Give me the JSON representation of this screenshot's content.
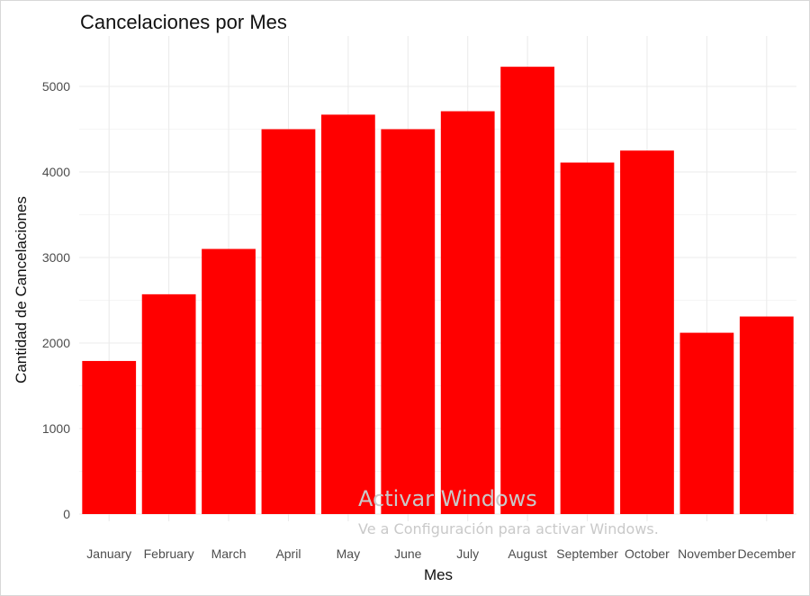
{
  "chart_data": {
    "type": "bar",
    "title": "Cancelaciones por Mes",
    "xlabel": "Mes",
    "ylabel": "Cantidad de Cancelaciones",
    "categories": [
      "January",
      "February",
      "March",
      "April",
      "May",
      "June",
      "July",
      "August",
      "September",
      "October",
      "November",
      "December"
    ],
    "values": [
      1790,
      2570,
      3100,
      4500,
      4670,
      4500,
      4710,
      5230,
      4110,
      4250,
      2120,
      2310
    ],
    "ylim": [
      0,
      5400
    ],
    "yticks": [
      0,
      1000,
      2000,
      3000,
      4000,
      5000
    ],
    "grid": true,
    "legend": "none",
    "bar_color": "#ff0000"
  },
  "watermark": {
    "line1": "Activar Windows",
    "line2": "Ve a Configuración para activar Windows."
  }
}
